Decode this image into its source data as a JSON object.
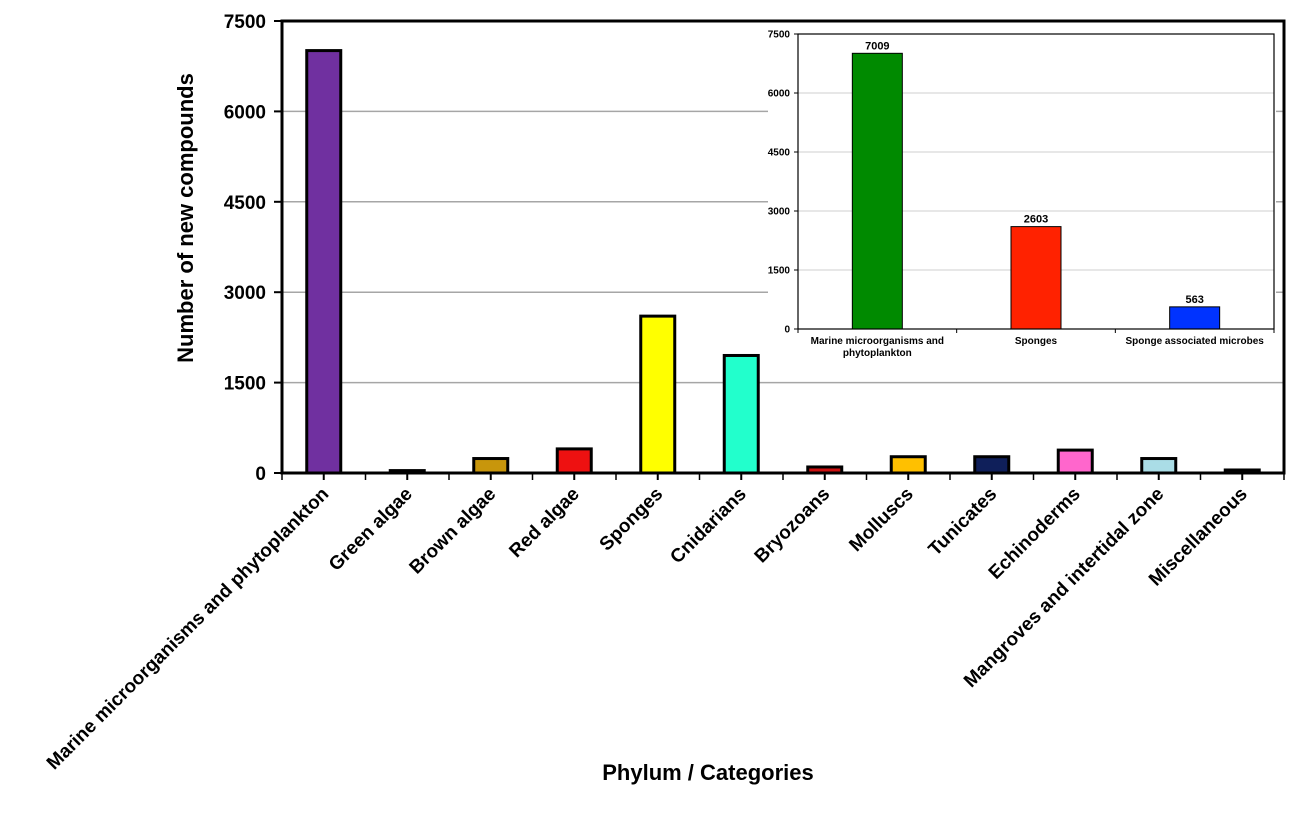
{
  "chart_data": [
    {
      "type": "bar",
      "xlabel": "Phylum / Categories",
      "ylabel": "Number of new compounds",
      "ylim": [
        0,
        7500
      ],
      "yticks": [
        "0",
        "1500",
        "3000",
        "4500",
        "6000",
        "7500"
      ],
      "ytick_values": [
        0,
        1500,
        3000,
        4500,
        6000,
        7500
      ],
      "grid": true,
      "categories": [
        "Marine microorganisms and phytoplankton",
        "Green algae",
        "Brown algae",
        "Red algae",
        "Sponges",
        "Cnidarians",
        "Bryozoans",
        "Molluscs",
        "Tunicates",
        "Echinoderms",
        "Mangroves and intertidal zone",
        "Miscellaneous"
      ],
      "values": [
        7009,
        40,
        240,
        400,
        2603,
        1950,
        100,
        270,
        270,
        380,
        240,
        50
      ],
      "colors": [
        "#7030a0",
        "#bbbbbb",
        "#c8960c",
        "#ee1111",
        "#ffff00",
        "#22ffcc",
        "#cc1111",
        "#ffc000",
        "#0f1f5a",
        "#ff66cc",
        "#aadde6",
        "#888888"
      ]
    },
    {
      "type": "bar",
      "ylim": [
        0,
        7500
      ],
      "yticks": [
        "0",
        "1500",
        "3000",
        "4500",
        "6000",
        "7500"
      ],
      "ytick_values": [
        0,
        1500,
        3000,
        4500,
        6000,
        7500
      ],
      "grid": true,
      "categories": [
        [
          "Marine microorganisms and",
          "phytoplankton"
        ],
        [
          "Sponges"
        ],
        [
          "Sponge associated microbes"
        ]
      ],
      "values": [
        7009,
        2603,
        563
      ],
      "data_labels": [
        "7009",
        "2603",
        "563"
      ],
      "colors": [
        "#008a00",
        "#ff2200",
        "#0033ff"
      ]
    }
  ]
}
